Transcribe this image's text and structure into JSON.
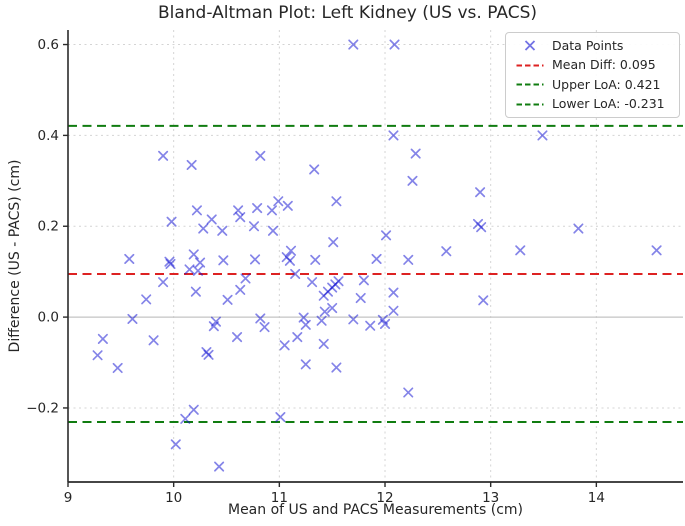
{
  "chart_data": {
    "type": "scatter",
    "title": "Bland-Altman Plot: Left Kidney (US vs. PACS)",
    "xlabel": "Mean of US and PACS Measurements (cm)",
    "ylabel": "Difference (US - PACS) (cm)",
    "xlim": [
      9.0,
      14.82
    ],
    "ylim": [
      -0.363,
      0.632
    ],
    "xticks": [
      9,
      10,
      11,
      12,
      13,
      14
    ],
    "yticks": [
      -0.2,
      0.0,
      0.2,
      0.4,
      0.6
    ],
    "grid": true,
    "zero_line": true,
    "legend_position": "upper right",
    "marker": {
      "shape": "x",
      "color": "#1414d2",
      "opacity": 0.52,
      "size": 4.2,
      "stroke_width": 1.7
    },
    "reference_lines": [
      {
        "name": "mean-diff-line",
        "label": "Mean Diff",
        "value": 0.095,
        "color": "#dd2222"
      },
      {
        "name": "upper-loa-line",
        "label": "Upper LoA",
        "value": 0.421,
        "color": "#107c10"
      },
      {
        "name": "lower-loa-line",
        "label": "Lower LoA",
        "value": -0.231,
        "color": "#107c10"
      }
    ],
    "points": [
      [
        11.7,
        0.6
      ],
      [
        12.09,
        0.6
      ],
      [
        9.9,
        0.355
      ],
      [
        10.17,
        0.335
      ],
      [
        10.82,
        0.355
      ],
      [
        11.33,
        0.325
      ],
      [
        12.29,
        0.36
      ],
      [
        12.26,
        0.3
      ],
      [
        12.08,
        0.4
      ],
      [
        13.49,
        0.4
      ],
      [
        12.9,
        0.275
      ],
      [
        11.54,
        0.255
      ],
      [
        10.99,
        0.255
      ],
      [
        11.08,
        0.245
      ],
      [
        10.93,
        0.235
      ],
      [
        10.79,
        0.24
      ],
      [
        10.61,
        0.235
      ],
      [
        10.63,
        0.22
      ],
      [
        10.22,
        0.235
      ],
      [
        10.36,
        0.215
      ],
      [
        10.28,
        0.195
      ],
      [
        9.98,
        0.21
      ],
      [
        10.46,
        0.19
      ],
      [
        10.76,
        0.2
      ],
      [
        10.94,
        0.19
      ],
      [
        11.51,
        0.165
      ],
      [
        12.88,
        0.205
      ],
      [
        12.91,
        0.198
      ],
      [
        13.83,
        0.195
      ],
      [
        12.01,
        0.18
      ],
      [
        12.58,
        0.145
      ],
      [
        13.28,
        0.147
      ],
      [
        14.57,
        0.147
      ],
      [
        9.58,
        0.128
      ],
      [
        9.97,
        0.117
      ],
      [
        9.96,
        0.122
      ],
      [
        10.19,
        0.138
      ],
      [
        10.15,
        0.105
      ],
      [
        10.23,
        0.102
      ],
      [
        10.25,
        0.12
      ],
      [
        10.47,
        0.125
      ],
      [
        10.77,
        0.127
      ],
      [
        11.11,
        0.146
      ],
      [
        11.07,
        0.132
      ],
      [
        11.1,
        0.124
      ],
      [
        11.34,
        0.126
      ],
      [
        11.92,
        0.128
      ],
      [
        12.22,
        0.126
      ],
      [
        9.9,
        0.077
      ],
      [
        11.15,
        0.095
      ],
      [
        11.31,
        0.077
      ],
      [
        11.42,
        0.047
      ],
      [
        11.46,
        0.056
      ],
      [
        11.5,
        0.065
      ],
      [
        11.53,
        0.072
      ],
      [
        11.56,
        0.079
      ],
      [
        11.8,
        0.081
      ],
      [
        11.77,
        0.042
      ],
      [
        10.21,
        0.056
      ],
      [
        10.63,
        0.06
      ],
      [
        10.51,
        0.038
      ],
      [
        10.68,
        0.085
      ],
      [
        12.08,
        0.054
      ],
      [
        12.93,
        0.037
      ],
      [
        9.74,
        0.039
      ],
      [
        11.43,
        0.012
      ],
      [
        11.5,
        0.02
      ],
      [
        12.08,
        0.014
      ],
      [
        9.61,
        -0.004
      ],
      [
        10.4,
        -0.01
      ],
      [
        10.38,
        -0.02
      ],
      [
        10.82,
        -0.003
      ],
      [
        10.86,
        -0.022
      ],
      [
        11.23,
        -0.001
      ],
      [
        11.25,
        -0.017
      ],
      [
        11.4,
        -0.008
      ],
      [
        11.7,
        -0.005
      ],
      [
        11.86,
        -0.019
      ],
      [
        11.98,
        -0.006
      ],
      [
        12.0,
        -0.015
      ],
      [
        9.33,
        -0.048
      ],
      [
        9.81,
        -0.051
      ],
      [
        10.6,
        -0.044
      ],
      [
        11.17,
        -0.044
      ],
      [
        11.05,
        -0.062
      ],
      [
        11.42,
        -0.059
      ],
      [
        9.28,
        -0.084
      ],
      [
        10.31,
        -0.077
      ],
      [
        10.33,
        -0.083
      ],
      [
        9.47,
        -0.112
      ],
      [
        11.25,
        -0.104
      ],
      [
        11.54,
        -0.111
      ],
      [
        12.22,
        -0.166
      ],
      [
        10.19,
        -0.204
      ],
      [
        11.01,
        -0.22
      ],
      [
        10.11,
        -0.224
      ],
      [
        10.02,
        -0.28
      ],
      [
        10.43,
        -0.329
      ]
    ]
  },
  "legend": {
    "items": [
      {
        "label": "Data Points",
        "type": "marker-x",
        "color": "#1414d2"
      },
      {
        "label": "Mean Diff: 0.095",
        "type": "dashed-line",
        "color": "#dd2222"
      },
      {
        "label": "Upper LoA: 0.421",
        "type": "dashed-line",
        "color": "#107c10"
      },
      {
        "label": "Lower LoA: -0.231",
        "type": "dashed-line",
        "color": "#107c10"
      }
    ]
  },
  "colors": {
    "background": "#ffffff",
    "grid": "#d4d4d4",
    "zero_line": "#c4c4c4",
    "spine": "#2b2b2b",
    "text": "#262626",
    "legend_border": "#cccccc"
  }
}
